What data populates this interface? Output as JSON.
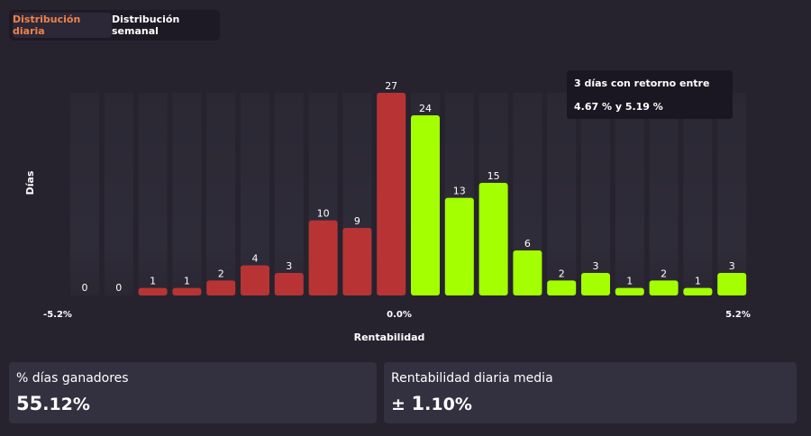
{
  "tabs": {
    "daily_label": "Distribución diaria",
    "weekly_label": "Distribución semanal",
    "active": "daily"
  },
  "chart_data": {
    "type": "bar",
    "title": "",
    "xlabel": "Rentabilidad",
    "ylabel": "Días",
    "x_tick_labels": [
      "-5.2%",
      "0.0%",
      "5.2%"
    ],
    "x_range": [
      -5.2,
      5.2
    ],
    "ylim": [
      0,
      27
    ],
    "values": [
      0,
      0,
      1,
      1,
      2,
      4,
      3,
      10,
      9,
      27,
      24,
      13,
      15,
      6,
      2,
      3,
      1,
      2,
      1,
      3
    ],
    "colors": {
      "negative": "#b83434",
      "positive": "#a4ff00",
      "track": "#2d2a36"
    },
    "negative_bins": 10
  },
  "tooltip": {
    "line1": "3 días con retorno entre",
    "line2": "4.67 % y 5.19 %"
  },
  "stats": {
    "win_days": {
      "label": "% días ganadores",
      "value_int": "55",
      "value_dec": ".12%"
    },
    "avg_return": {
      "label": "Rentabilidad diaria media",
      "prefix": "± ",
      "value_int": "1",
      "value_dec": ".10%"
    }
  }
}
